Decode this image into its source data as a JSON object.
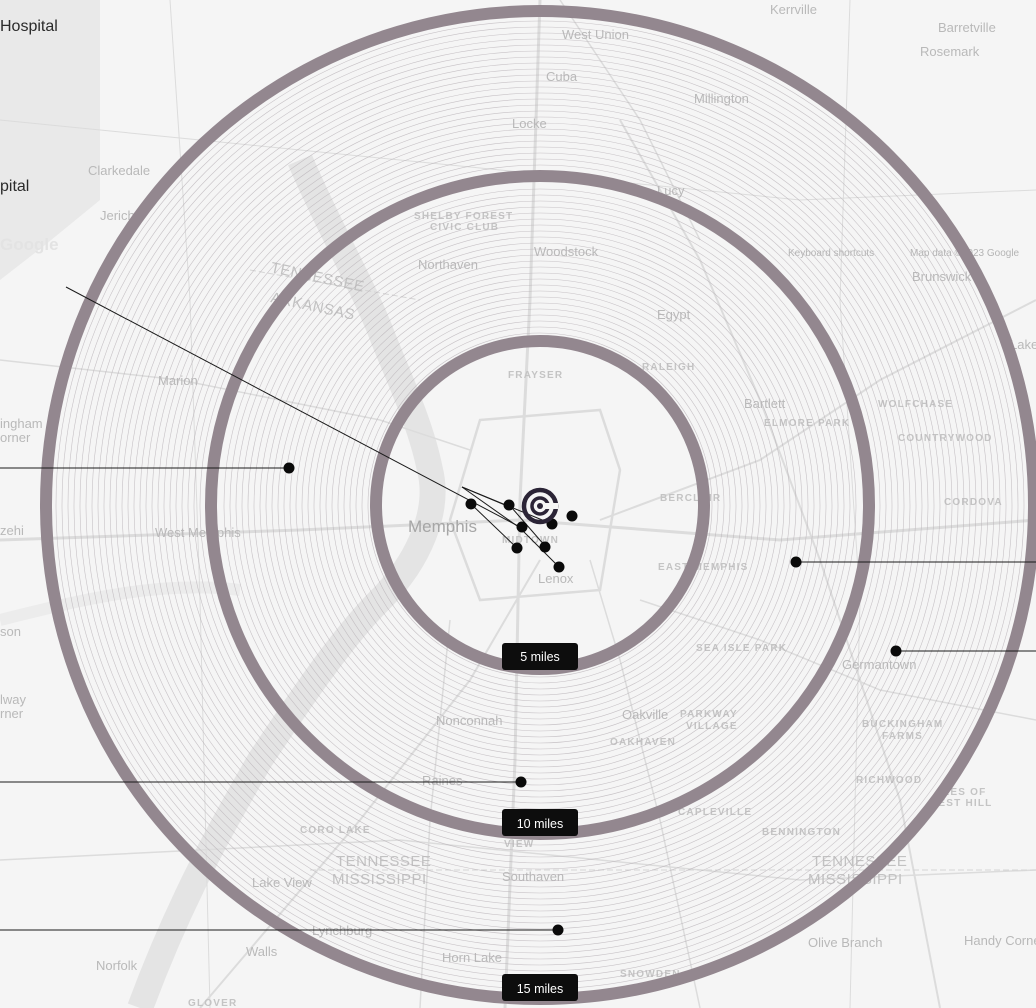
{
  "side_labels": [
    {
      "text": "Hospital"
    },
    {
      "text": "pital"
    }
  ],
  "center_logo": {
    "icon": "hospital-logo-icon"
  },
  "rings": [
    {
      "label": "5 miles"
    },
    {
      "label": "10 miles"
    },
    {
      "label": "15 miles"
    }
  ],
  "map": {
    "google_logo": "Google",
    "keyboard_shortcuts": "Keyboard shortcuts",
    "map_data": "Map data ©2023 Google",
    "places": {
      "memphis": "Memphis",
      "west_memphis": "West Memphis",
      "germantown": "Germantown",
      "bartlett": "Bartlett",
      "lenox": "Lenox",
      "millington": "Millington",
      "west_union": "West Union",
      "cuba": "Cuba",
      "locke": "Locke",
      "lucy": "Lucy",
      "woodstock": "Woodstock",
      "northaven": "Northaven",
      "egypt": "Egypt",
      "marion": "Marion",
      "clarkedale": "Clarkedale",
      "jericho": "Jericho",
      "kerrville": "Kerrville",
      "barretville": "Barretville",
      "rosemark": "Rosemark",
      "brunswick": "Brunswick",
      "lakeland": "Lakeland",
      "nonconnah": "Nonconnah",
      "oakville": "Oakville",
      "southaven": "Southaven",
      "horn_lake": "Horn Lake",
      "lynchburg": "Lynchburg",
      "walls": "Walls",
      "norfolk": "Norfolk",
      "lake_view": "Lake View",
      "olive_branch": "Olive Branch",
      "handy_corner": "Handy Corner",
      "raines": "Raines",
      "shelby_forest": "SHELBY FOREST",
      "civic_club": "CIVIC CLUB",
      "frayser": "FRAYSER",
      "raleigh": "RALEIGH",
      "berclair": "BERCLAIR",
      "midtown": "MIDTOWN",
      "east_memphis": "EAST MEMPHIS",
      "sea_isle_park": "SEA ISLE PARK",
      "elmore_park": "ELMORE PARK",
      "wolfchase": "WOLFCHASE",
      "countrywood": "COUNTRYWOOD",
      "cordova": "CORDOVA",
      "buckingham": "BUCKINGHAM",
      "farms": "FARMS",
      "richwood": "RICHWOOD",
      "oakhaven": "OAKHAVEN",
      "parkway": "PARKWAY",
      "village": "VILLAGE",
      "capleville": "CAPLEVILLE",
      "bennington": "BENNINGTON",
      "coro_lake": "CORO LAKE",
      "snowden": "SNOWDEN",
      "glover": "GLOVER",
      "view": "VIEW",
      "lakes_of_forest_hill": "KES OF",
      "forest_hill": "REST HILL",
      "tennessee_1": "TENNESSEE",
      "arkansas": "ARKANSAS",
      "tennessee_2": "TENNESSEE",
      "mississippi_1": "MISSISSIPPI",
      "tennessee_3": "TENNESSEE",
      "mississippi_2": "MISSISSIPPI",
      "cunningham": "ingham",
      "corner": "orner",
      "zehi": "zehi",
      "son": "son",
      "halfway": "lway",
      "halfway_corner": "rner"
    }
  }
}
